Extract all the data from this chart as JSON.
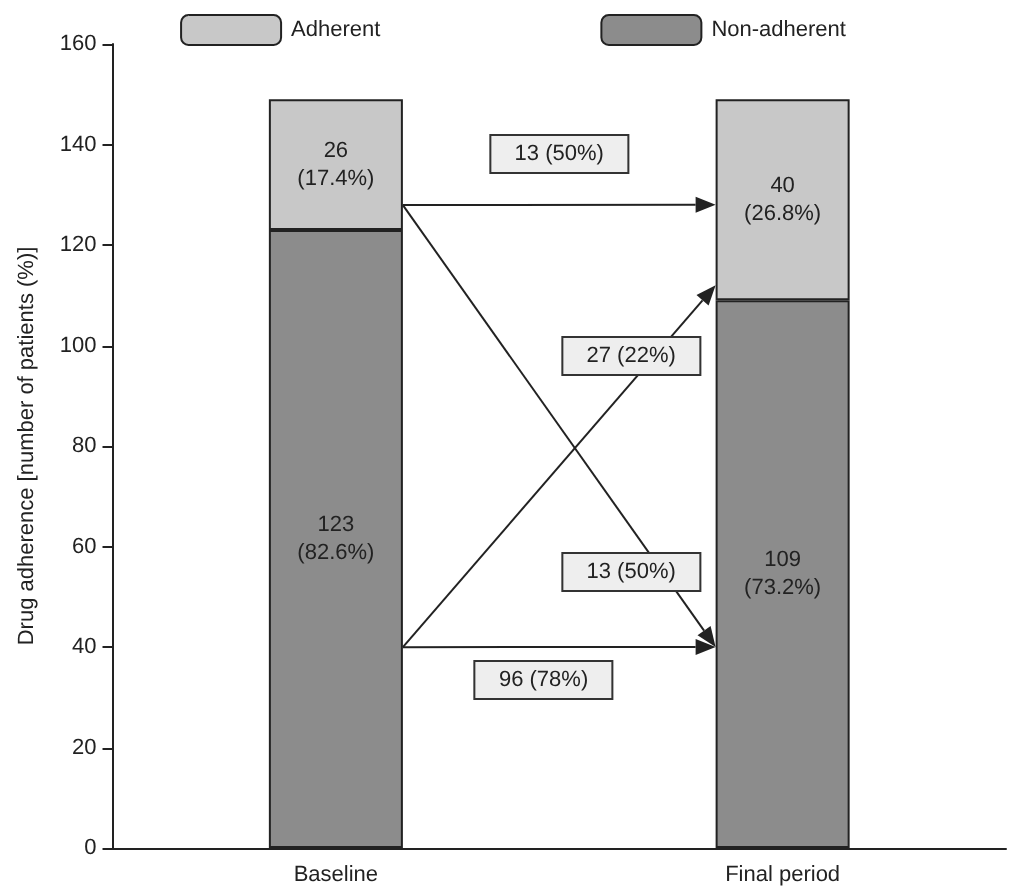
{
  "chart_data": {
    "type": "bar",
    "stacked": true,
    "categories": [
      "Baseline",
      "Final period"
    ],
    "ylabel": "Drug adherence [number of patients (%)]",
    "ylim": [
      0,
      160
    ],
    "yticks": [
      0,
      20,
      40,
      60,
      80,
      100,
      120,
      140,
      160
    ],
    "grid": false,
    "legend": "top",
    "series": [
      {
        "name": "Non-adherent",
        "color": "#8c8c8c",
        "values": [
          123,
          109
        ],
        "value_labels": [
          "123 (82.6%)",
          "109 (73.2%)"
        ]
      },
      {
        "name": "Adherent",
        "color": "#c8c8c8",
        "values": [
          26,
          40
        ],
        "value_labels": [
          "26 (17.4%)",
          "40 (26.8%)"
        ]
      }
    ],
    "annotations": [
      "13 (50%)",
      "27 (22%)",
      "13 (50%)",
      "96 (78%)"
    ]
  }
}
